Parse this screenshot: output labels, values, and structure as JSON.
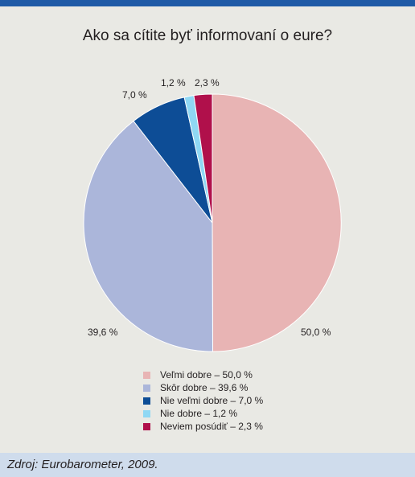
{
  "chart_data": {
    "type": "pie",
    "title": "Ako sa cítite byť informovaní o eure?",
    "slices": [
      {
        "label": "Veľmi dobre – 50,0 %",
        "value": 50.0,
        "value_label": "50,0 %",
        "color": "#e8b4b4"
      },
      {
        "label": "Skôr dobre – 39,6 %",
        "value": 39.6,
        "value_label": "39,6 %",
        "color": "#abb6da"
      },
      {
        "label": "Nie veľmi dobre – 7,0 %",
        "value": 7.0,
        "value_label": "7,0 %",
        "color": "#0d4d96"
      },
      {
        "label": "Nie dobre – 1,2 %",
        "value": 1.2,
        "value_label": "1,2 %",
        "color": "#8fd8f4"
      },
      {
        "label": "Neviem posúdiť – 2,3 %",
        "value": 2.3,
        "value_label": "2,3 %",
        "color": "#b0104b"
      }
    ],
    "legend_position": "bottom"
  },
  "source": "Zdroj: Eurobarometer, 2009.",
  "colors": {
    "top_bar": "#1f5aa6",
    "background": "#e9e9e4",
    "source_bar": "#cfdcec"
  }
}
